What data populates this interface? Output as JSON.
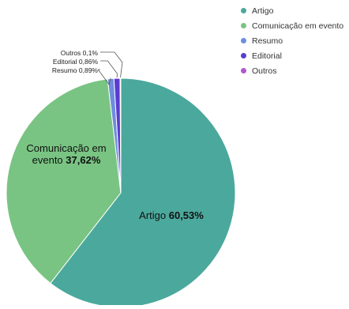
{
  "chart_data": {
    "type": "pie",
    "slices": [
      {
        "name": "Artigo",
        "label_first": "Artigo",
        "label_rest": "",
        "percent_text": "60,53%",
        "value": 60.53,
        "color": "#4ba89c"
      },
      {
        "name": "Comunicação em evento",
        "label_first": "Comunicação em",
        "label_rest": "evento",
        "percent_text": "37,62%",
        "value": 37.62,
        "color": "#79c483"
      },
      {
        "name": "Resumo",
        "label_first": "Resumo",
        "label_rest": "",
        "percent_text": "0,89%",
        "value": 0.89,
        "color": "#6e8ddf"
      },
      {
        "name": "Editorial",
        "label_first": "Editorial",
        "label_rest": "",
        "percent_text": "0,86%",
        "value": 0.86,
        "color": "#5b3ccf"
      },
      {
        "name": "Outros",
        "label_first": "Outros",
        "label_rest": "",
        "percent_text": "0,1%",
        "value": 0.1,
        "color": "#b157cf"
      }
    ],
    "legend_position": "top-right"
  }
}
